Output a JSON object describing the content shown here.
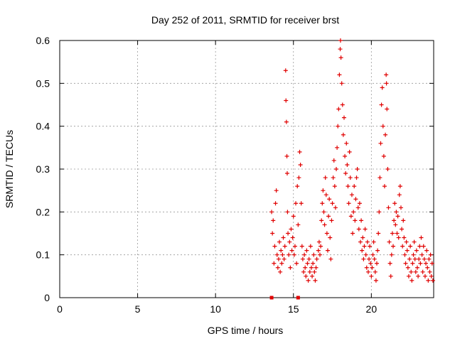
{
  "chart_data": {
    "type": "scatter",
    "title": "Day 252 of 2011, SRMTID for receiver brst",
    "xlabel": "GPS time / hours",
    "ylabel": "SRMTID / TECUs",
    "xlim": [
      0,
      24
    ],
    "ylim": [
      0,
      0.6
    ],
    "xticks": [
      0,
      5,
      10,
      15,
      20
    ],
    "yticks": [
      0,
      0.1,
      0.2,
      0.3,
      0.4,
      0.5,
      0.6
    ],
    "xtick_labels": [
      "0",
      "5",
      "10",
      "15",
      "20"
    ],
    "ytick_labels": [
      "0",
      "0.1",
      "0.2",
      "0.3",
      "0.4",
      "0.5",
      "0.6"
    ],
    "grid": true,
    "marker": "+",
    "color": "#e00000",
    "zero_markers_x": [
      13.6,
      15.3
    ],
    "points": [
      [
        13.6,
        0.2
      ],
      [
        13.65,
        0.15
      ],
      [
        13.7,
        0.18
      ],
      [
        13.75,
        0.08
      ],
      [
        13.8,
        0.12
      ],
      [
        13.85,
        0.22
      ],
      [
        13.9,
        0.25
      ],
      [
        13.95,
        0.1
      ],
      [
        14.0,
        0.07
      ],
      [
        14.05,
        0.09
      ],
      [
        14.1,
        0.13
      ],
      [
        14.15,
        0.06
      ],
      [
        14.2,
        0.11
      ],
      [
        14.25,
        0.08
      ],
      [
        14.3,
        0.1
      ],
      [
        14.35,
        0.14
      ],
      [
        14.4,
        0.09
      ],
      [
        14.45,
        0.12
      ],
      [
        14.5,
        0.53
      ],
      [
        14.52,
        0.46
      ],
      [
        14.55,
        0.41
      ],
      [
        14.58,
        0.33
      ],
      [
        14.6,
        0.29
      ],
      [
        14.62,
        0.2
      ],
      [
        14.65,
        0.15
      ],
      [
        14.7,
        0.1
      ],
      [
        14.75,
        0.13
      ],
      [
        14.8,
        0.07
      ],
      [
        14.85,
        0.16
      ],
      [
        14.9,
        0.11
      ],
      [
        14.95,
        0.14
      ],
      [
        15.0,
        0.19
      ],
      [
        15.05,
        0.1
      ],
      [
        15.1,
        0.12
      ],
      [
        15.15,
        0.22
      ],
      [
        15.2,
        0.08
      ],
      [
        15.25,
        0.26
      ],
      [
        15.3,
        0.17
      ],
      [
        15.35,
        0.28
      ],
      [
        15.4,
        0.34
      ],
      [
        15.45,
        0.31
      ],
      [
        15.5,
        0.22
      ],
      [
        15.55,
        0.12
      ],
      [
        15.6,
        0.09
      ],
      [
        15.65,
        0.06
      ],
      [
        15.7,
        0.1
      ],
      [
        15.75,
        0.07
      ],
      [
        15.8,
        0.05
      ],
      [
        15.85,
        0.11
      ],
      [
        15.9,
        0.08
      ],
      [
        15.95,
        0.04
      ],
      [
        16.0,
        0.09
      ],
      [
        16.05,
        0.06
      ],
      [
        16.1,
        0.12
      ],
      [
        16.15,
        0.07
      ],
      [
        16.2,
        0.05
      ],
      [
        16.25,
        0.08
      ],
      [
        16.3,
        0.1
      ],
      [
        16.35,
        0.06
      ],
      [
        16.4,
        0.04
      ],
      [
        16.45,
        0.07
      ],
      [
        16.5,
        0.09
      ],
      [
        16.6,
        0.11
      ],
      [
        16.65,
        0.13
      ],
      [
        16.7,
        0.1
      ],
      [
        16.75,
        0.12
      ],
      [
        16.8,
        0.18
      ],
      [
        16.85,
        0.22
      ],
      [
        16.9,
        0.25
      ],
      [
        16.95,
        0.2
      ],
      [
        17.0,
        0.17
      ],
      [
        17.05,
        0.28
      ],
      [
        17.1,
        0.24
      ],
      [
        17.15,
        0.15
      ],
      [
        17.2,
        0.11
      ],
      [
        17.25,
        0.19
      ],
      [
        17.3,
        0.23
      ],
      [
        17.35,
        0.14
      ],
      [
        17.4,
        0.09
      ],
      [
        17.45,
        0.18
      ],
      [
        17.5,
        0.22
      ],
      [
        17.55,
        0.28
      ],
      [
        17.6,
        0.32
      ],
      [
        17.65,
        0.26
      ],
      [
        17.7,
        0.21
      ],
      [
        17.75,
        0.3
      ],
      [
        17.8,
        0.35
      ],
      [
        17.85,
        0.4
      ],
      [
        17.9,
        0.44
      ],
      [
        17.95,
        0.52
      ],
      [
        18.0,
        0.58
      ],
      [
        18.02,
        0.6
      ],
      [
        18.05,
        0.56
      ],
      [
        18.1,
        0.5
      ],
      [
        18.15,
        0.45
      ],
      [
        18.2,
        0.38
      ],
      [
        18.25,
        0.42
      ],
      [
        18.3,
        0.33
      ],
      [
        18.35,
        0.29
      ],
      [
        18.4,
        0.36
      ],
      [
        18.45,
        0.31
      ],
      [
        18.5,
        0.26
      ],
      [
        18.55,
        0.22
      ],
      [
        18.6,
        0.34
      ],
      [
        18.65,
        0.28
      ],
      [
        18.7,
        0.19
      ],
      [
        18.75,
        0.24
      ],
      [
        18.8,
        0.15
      ],
      [
        18.85,
        0.2
      ],
      [
        18.9,
        0.26
      ],
      [
        18.95,
        0.18
      ],
      [
        19.0,
        0.23
      ],
      [
        19.05,
        0.28
      ],
      [
        19.1,
        0.3
      ],
      [
        19.15,
        0.21
      ],
      [
        19.2,
        0.16
      ],
      [
        19.25,
        0.22
      ],
      [
        19.3,
        0.13
      ],
      [
        19.35,
        0.18
      ],
      [
        19.4,
        0.11
      ],
      [
        19.45,
        0.14
      ],
      [
        19.5,
        0.09
      ],
      [
        19.55,
        0.12
      ],
      [
        19.6,
        0.16
      ],
      [
        19.65,
        0.1
      ],
      [
        19.7,
        0.07
      ],
      [
        19.75,
        0.13
      ],
      [
        19.8,
        0.06
      ],
      [
        19.85,
        0.09
      ],
      [
        19.9,
        0.12
      ],
      [
        19.95,
        0.08
      ],
      [
        20.0,
        0.05
      ],
      [
        20.05,
        0.07
      ],
      [
        20.1,
        0.1
      ],
      [
        20.15,
        0.13
      ],
      [
        20.2,
        0.09
      ],
      [
        20.25,
        0.06
      ],
      [
        20.3,
        0.04
      ],
      [
        20.35,
        0.08
      ],
      [
        20.4,
        0.11
      ],
      [
        20.45,
        0.15
      ],
      [
        20.5,
        0.2
      ],
      [
        20.55,
        0.28
      ],
      [
        20.6,
        0.36
      ],
      [
        20.65,
        0.45
      ],
      [
        20.7,
        0.49
      ],
      [
        20.75,
        0.4
      ],
      [
        20.8,
        0.33
      ],
      [
        20.85,
        0.26
      ],
      [
        20.9,
        0.38
      ],
      [
        20.95,
        0.52
      ],
      [
        20.97,
        0.5
      ],
      [
        21.0,
        0.44
      ],
      [
        21.05,
        0.3
      ],
      [
        21.1,
        0.21
      ],
      [
        21.15,
        0.13
      ],
      [
        21.2,
        0.08
      ],
      [
        21.25,
        0.05
      ],
      [
        21.3,
        0.1
      ],
      [
        21.35,
        0.15
      ],
      [
        21.4,
        0.12
      ],
      [
        21.45,
        0.18
      ],
      [
        21.5,
        0.22
      ],
      [
        21.55,
        0.17
      ],
      [
        21.6,
        0.2
      ],
      [
        21.65,
        0.15
      ],
      [
        21.7,
        0.19
      ],
      [
        21.75,
        0.14
      ],
      [
        21.8,
        0.24
      ],
      [
        21.85,
        0.26
      ],
      [
        21.9,
        0.21
      ],
      [
        21.95,
        0.16
      ],
      [
        22.0,
        0.12
      ],
      [
        22.05,
        0.18
      ],
      [
        22.1,
        0.14
      ],
      [
        22.15,
        0.1
      ],
      [
        22.2,
        0.08
      ],
      [
        22.25,
        0.13
      ],
      [
        22.3,
        0.11
      ],
      [
        22.35,
        0.07
      ],
      [
        22.4,
        0.05
      ],
      [
        22.45,
        0.09
      ],
      [
        22.5,
        0.12
      ],
      [
        22.55,
        0.06
      ],
      [
        22.6,
        0.04
      ],
      [
        22.65,
        0.08
      ],
      [
        22.7,
        0.1
      ],
      [
        22.75,
        0.13
      ],
      [
        22.8,
        0.09
      ],
      [
        22.85,
        0.06
      ],
      [
        22.9,
        0.11
      ],
      [
        22.95,
        0.07
      ],
      [
        23.0,
        0.05
      ],
      [
        23.05,
        0.09
      ],
      [
        23.1,
        0.12
      ],
      [
        23.15,
        0.08
      ],
      [
        23.2,
        0.14
      ],
      [
        23.25,
        0.1
      ],
      [
        23.3,
        0.06
      ],
      [
        23.35,
        0.12
      ],
      [
        23.4,
        0.09
      ],
      [
        23.45,
        0.05
      ],
      [
        23.5,
        0.08
      ],
      [
        23.55,
        0.11
      ],
      [
        23.6,
        0.07
      ],
      [
        23.65,
        0.04
      ],
      [
        23.7,
        0.09
      ],
      [
        23.75,
        0.06
      ],
      [
        23.8,
        0.1
      ],
      [
        23.85,
        0.05
      ],
      [
        23.9,
        0.08
      ],
      [
        23.95,
        0.04
      ]
    ]
  }
}
